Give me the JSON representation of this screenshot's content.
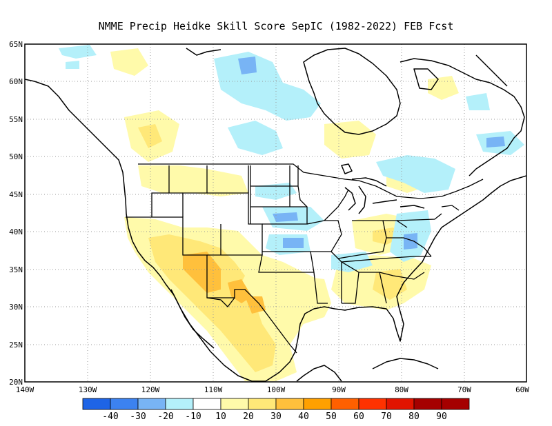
{
  "title": "NMME Precip Heidke Skill Score SepIC (1982-2022) FEB Fcst",
  "lat_labels": [
    "65N",
    "60N",
    "55N",
    "50N",
    "45N",
    "40N",
    "35N",
    "30N",
    "25N",
    "20N"
  ],
  "lon_labels": [
    "140W",
    "130W",
    "120W",
    "110W",
    "100W",
    "90W",
    "80W",
    "70W",
    "60W"
  ],
  "colorbar": {
    "labels": [
      "-40",
      "-30",
      "-20",
      "-10",
      "10",
      "20",
      "30",
      "40",
      "50",
      "60",
      "70",
      "80",
      "90"
    ],
    "colors": [
      "#1e64e6",
      "#3c82f0",
      "#78b4f5",
      "#b4f0fa",
      "#ffffff",
      "#fffaaa",
      "#ffe878",
      "#ffc03c",
      "#ffa000",
      "#ff6000",
      "#ff3200",
      "#e11400",
      "#a50000"
    ]
  },
  "regions": [
    {
      "kind": "orange",
      "color": "#ffc03c",
      "lon": -112,
      "lat": 33.5
    },
    {
      "kind": "orange",
      "color": "#ffc03c",
      "lon": -109,
      "lat": 30
    },
    {
      "kind": "blue",
      "color": "#78b4f5",
      "lon": -104.5,
      "lat": 60.5
    },
    {
      "kind": "blue",
      "color": "#78b4f5",
      "lon": -80.5,
      "lat": 38
    }
  ]
}
